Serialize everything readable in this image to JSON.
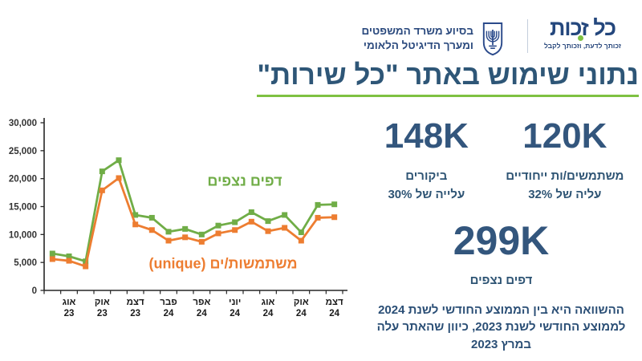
{
  "header": {
    "brand": {
      "name": "כל זכות",
      "tagline": "זכותך לדעת, וזכותך לקבל"
    },
    "emblem_name": "israel-state-emblem",
    "ministry_credit": {
      "line1": "בסיוע משרד המשפטים",
      "line2": "ומערך הדיגיטל הלאומי"
    }
  },
  "title": "נתוני שימוש באתר \"כל שירות\"",
  "chart_data": {
    "type": "line",
    "categories": [
      null,
      {
        "month": "אוג",
        "year": "23"
      },
      null,
      {
        "month": "אוק",
        "year": "23"
      },
      null,
      {
        "month": "דצמ",
        "year": "23"
      },
      null,
      {
        "month": "פבר",
        "year": "24"
      },
      null,
      {
        "month": "אפר",
        "year": "24"
      },
      null,
      {
        "month": "יוני",
        "year": "24"
      },
      null,
      {
        "month": "אוג",
        "year": "24"
      },
      null,
      {
        "month": "אוק",
        "year": "24"
      },
      null,
      {
        "month": "דצמ",
        "year": "24"
      }
    ],
    "series": [
      {
        "name": "דפים נצפים",
        "color": "#70AD47",
        "values": [
          6600,
          6100,
          5200,
          21300,
          23300,
          13500,
          13000,
          10500,
          11000,
          10000,
          11600,
          12200,
          14000,
          12400,
          13500,
          10400,
          15300,
          15400
        ]
      },
      {
        "name": "משתמשות/ים (unique)",
        "color": "#ED7D31",
        "values": [
          5600,
          5300,
          4300,
          17900,
          20100,
          11800,
          10800,
          8900,
          9500,
          8700,
          10200,
          10800,
          12300,
          10600,
          11200,
          8900,
          13000,
          13100
        ]
      }
    ],
    "title": "",
    "xlabel": "",
    "ylabel": "",
    "ylim": [
      0,
      30000
    ],
    "ytick_step": 5000,
    "grid": false,
    "legend_position": "inline-annotations",
    "axis_color": "#262626",
    "tick_label_color": "#333333"
  },
  "stats": {
    "visits": {
      "value": "148K",
      "label": "ביקורים",
      "change": "עלייה של 30%"
    },
    "unique_users": {
      "value": "120K",
      "label": "משתמשים/ות ייחודיים",
      "change": "עליה של 32%"
    },
    "page_views": {
      "value": "299K",
      "label": "דפים נצפים"
    },
    "note": "ההשוואה היא בין הממוצע החודשי לשנת 2024 לממוצע החודשי לשנת 2023, כיוון שהאתר עלה במרץ 2023"
  },
  "colors": {
    "title_blue": "#2E5677",
    "stat_blue": "#33567D",
    "underline_green": "#7EC141",
    "series_green": "#70AD47",
    "series_orange": "#ED7D31",
    "logo_navy": "#24477D"
  }
}
